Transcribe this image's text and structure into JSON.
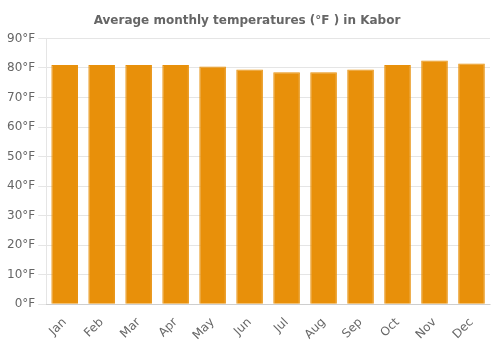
{
  "chart_data": {
    "type": "bar",
    "title": "Average monthly temperatures (°F ) in Kabor",
    "categories": [
      "Jan",
      "Feb",
      "Mar",
      "Apr",
      "May",
      "Jun",
      "Jul",
      "Aug",
      "Sep",
      "Oct",
      "Nov",
      "Dec"
    ],
    "values": [
      81,
      81,
      81,
      81,
      80.5,
      79.5,
      78.5,
      78.5,
      79.5,
      81,
      82.5,
      81.5
    ],
    "color": "#E8900A",
    "ylim": [
      0,
      90
    ],
    "yticks": [
      {
        "value": 0,
        "label": "0°F"
      },
      {
        "value": 10,
        "label": "10°F"
      },
      {
        "value": 20,
        "label": "20°F"
      },
      {
        "value": 30,
        "label": "30°F"
      },
      {
        "value": 40,
        "label": "40°F"
      },
      {
        "value": 50,
        "label": "50°F"
      },
      {
        "value": 60,
        "label": "60°F"
      },
      {
        "value": 70,
        "label": "70°F"
      },
      {
        "value": 80,
        "label": "80°F"
      },
      {
        "value": 90,
        "label": "90°F"
      }
    ],
    "grid": true
  }
}
